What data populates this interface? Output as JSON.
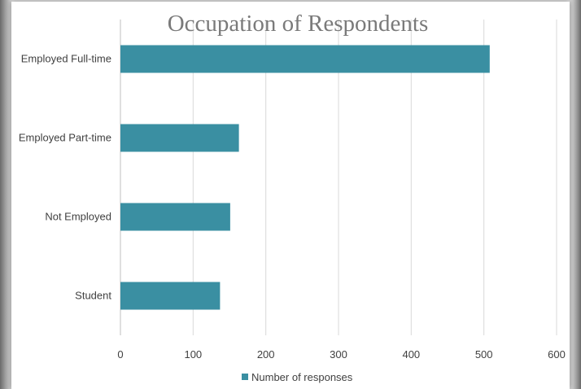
{
  "chart_data": {
    "type": "bar",
    "orientation": "horizontal",
    "title": "Occupation of Respondents",
    "categories": [
      "Employed Full-time",
      "Employed Part-time",
      "Not Employed",
      "Student"
    ],
    "series": [
      {
        "name": "Number of responses",
        "values": [
          508,
          163,
          151,
          137
        ]
      }
    ],
    "xlim": [
      0,
      600
    ],
    "x_ticks": [
      0,
      100,
      200,
      300,
      400,
      500,
      600
    ],
    "xlabel": "",
    "ylabel": "",
    "grid": "vertical",
    "legend": "bottom",
    "colors": {
      "bar": "#3a8fa2",
      "grid": "#d9d9d9",
      "axis": "#bfbfbf"
    }
  }
}
